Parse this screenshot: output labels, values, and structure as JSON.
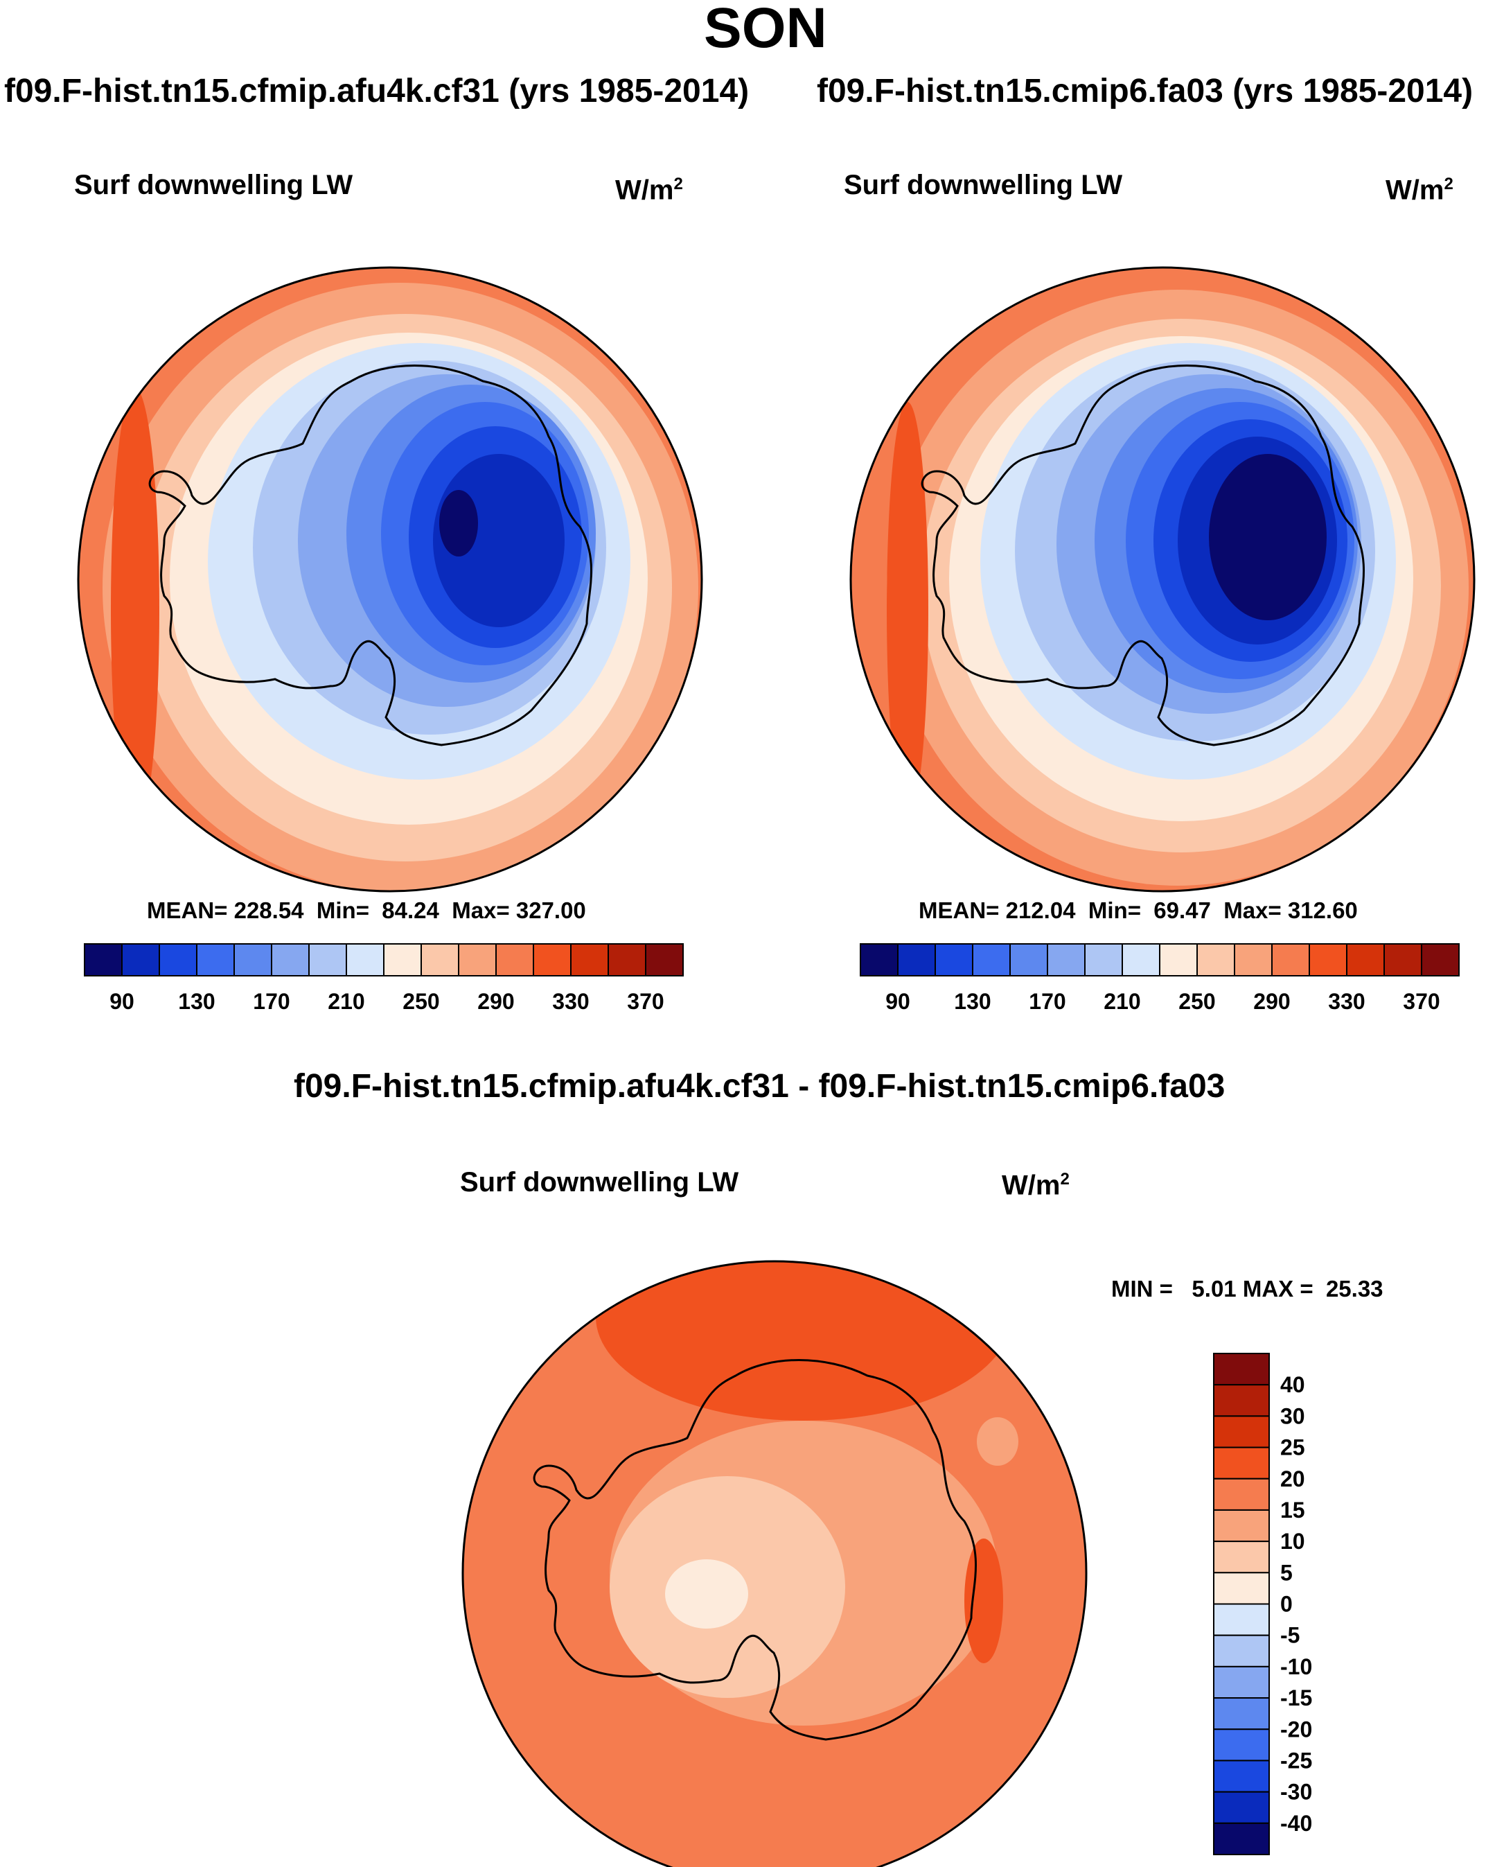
{
  "title": "SON",
  "panels": [
    {
      "heading": "f09.F-hist.tn15.cfmip.afu4k.cf31 (yrs 1985-2014)",
      "variable": "Surf downwelling LW",
      "units_base": "W/m",
      "units_exp": "2",
      "stats": "MEAN= 228.54  Min=  84.24  Max= 327.00",
      "map_type": "polar-stereographic-south",
      "region": "Antarctica / Southern Ocean"
    },
    {
      "heading": "f09.F-hist.tn15.cmip6.fa03 (yrs 1985-2014)",
      "variable": "Surf downwelling LW",
      "units_base": "W/m",
      "units_exp": "2",
      "stats": "MEAN= 212.04  Min=  69.47  Max= 312.60",
      "map_type": "polar-stereographic-south",
      "region": "Antarctica / Southern Ocean"
    },
    {
      "heading": "f09.F-hist.tn15.cfmip.afu4k.cf31 - f09.F-hist.tn15.cmip6.fa03",
      "variable": "Surf downwelling LW",
      "units_base": "W/m",
      "units_exp": "2",
      "stats": "MIN =   5.01 MAX =  25.33",
      "map_type": "polar-stereographic-south",
      "region": "Antarctica / Southern Ocean"
    }
  ],
  "abs_colorbar": {
    "colors": [
      "#08086b",
      "#0a2bbd",
      "#1a48e0",
      "#3c6cef",
      "#5d88ef",
      "#86a7f0",
      "#aec6f4",
      "#d6e6fb",
      "#fdebdc",
      "#fbc8aa",
      "#f8a37b",
      "#f57c4f",
      "#f1521f",
      "#d5330a",
      "#b21f08",
      "#800c0c"
    ],
    "labels": [
      "90",
      "130",
      "170",
      "210",
      "250",
      "290",
      "330",
      "370"
    ]
  },
  "diff_colorbar": {
    "colors": [
      "#08086b",
      "#0a2bbd",
      "#1a48e0",
      "#3c6cef",
      "#5d88ef",
      "#86a7f0",
      "#aec6f4",
      "#d6e6fb",
      "#fdebdc",
      "#fbc8aa",
      "#f8a37b",
      "#f57c4f",
      "#f1521f",
      "#d5330a",
      "#b21f08",
      "#800c0c"
    ],
    "labels": [
      "40",
      "30",
      "25",
      "20",
      "15",
      "10",
      "5",
      "0",
      "-5",
      "-10",
      "-15",
      "-20",
      "-25",
      "-30",
      "-40"
    ]
  }
}
